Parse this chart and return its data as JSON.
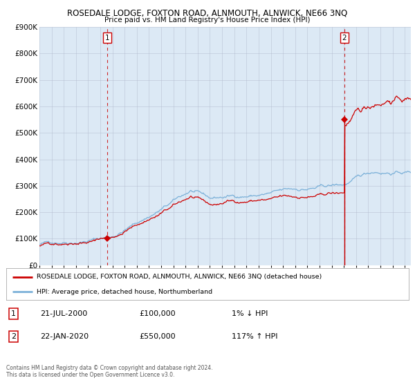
{
  "title": "ROSEDALE LODGE, FOXTON ROAD, ALNMOUTH, ALNWICK, NE66 3NQ",
  "subtitle": "Price paid vs. HM Land Registry's House Price Index (HPI)",
  "bg_color": "#dce9f5",
  "outer_bg_color": "#ffffff",
  "hpi_color": "#7ab0d8",
  "price_color": "#cc0000",
  "ylim": [
    0,
    900000
  ],
  "yticks": [
    0,
    100000,
    200000,
    300000,
    400000,
    500000,
    600000,
    700000,
    800000,
    900000
  ],
  "ytick_labels": [
    "£0",
    "£100K",
    "£200K",
    "£300K",
    "£400K",
    "£500K",
    "£600K",
    "£700K",
    "£800K",
    "£900K"
  ],
  "sale1_date": 2000.55,
  "sale1_price": 100000,
  "sale2_date": 2020.05,
  "sale2_price": 550000,
  "legend_line1": "ROSEDALE LODGE, FOXTON ROAD, ALNMOUTH, ALNWICK, NE66 3NQ (detached house)",
  "legend_line2": "HPI: Average price, detached house, Northumberland",
  "table_row1": [
    "1",
    "21-JUL-2000",
    "£100,000",
    "1% ↓ HPI"
  ],
  "table_row2": [
    "2",
    "22-JAN-2020",
    "£550,000",
    "117% ↑ HPI"
  ],
  "footer": "Contains HM Land Registry data © Crown copyright and database right 2024.\nThis data is licensed under the Open Government Licence v3.0.",
  "xstart": 1995.0,
  "xend": 2025.5
}
